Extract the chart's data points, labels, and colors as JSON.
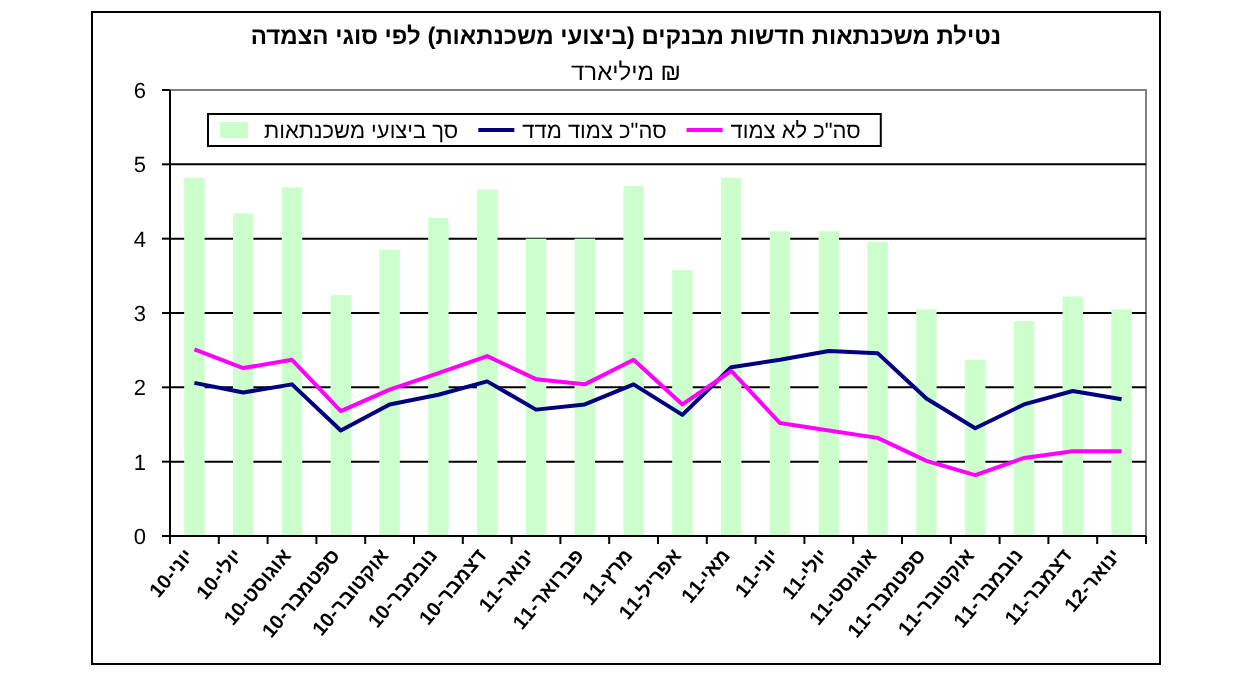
{
  "chart_data": {
    "type": "bar",
    "title": "נטילת משכנתאות חדשות מבנקים (ביצועי משכנתאות) לפי סוגי הצמדה",
    "subtitle": "מיליארד ₪",
    "categories": [
      "יוני-10",
      "יולי-10",
      "אוגוסט-10",
      "ספטמבר-10",
      "אוקטובר-10",
      "נובמבר-10",
      "דצמבר-10",
      "ינואר-11",
      "פברואר-11",
      "מרץ-11",
      "אפריל-11",
      "מאי-11",
      "יוני-11",
      "יולי-11",
      "אוגוסט-11",
      "ספטמבר-11",
      "אוקטובר-11",
      "נובמבר-11",
      "דצמבר-11",
      "ינואר-12"
    ],
    "series": [
      {
        "name": "סך ביצועי משכנתאות",
        "color": "#ccffcc",
        "values": [
          4.82,
          4.34,
          4.69,
          3.24,
          3.85,
          4.28,
          4.66,
          4.0,
          4.0,
          4.71,
          3.58,
          4.82,
          4.1,
          4.1,
          3.96,
          3.05,
          2.37,
          2.89,
          3.22,
          3.05
        ]
      },
      {
        "name": "סה\"כ צמוד מדד",
        "type": "line",
        "color": "#000080",
        "values": [
          2.06,
          1.93,
          2.04,
          1.42,
          1.77,
          1.9,
          2.08,
          1.7,
          1.77,
          2.04,
          1.63,
          2.27,
          2.37,
          2.49,
          2.46,
          1.85,
          1.45,
          1.77,
          1.95,
          1.84
        ]
      },
      {
        "name": "סה\"כ לא צמוד",
        "type": "line",
        "color": "#ff00ff",
        "values": [
          2.51,
          2.26,
          2.37,
          1.68,
          1.97,
          2.19,
          2.42,
          2.11,
          2.04,
          2.37,
          1.77,
          2.22,
          1.52,
          1.42,
          1.32,
          1.01,
          0.82,
          1.05,
          1.14,
          1.14
        ]
      }
    ],
    "ylim": [
      0,
      6
    ],
    "yticks": [
      0,
      1,
      2,
      3,
      4,
      5,
      6
    ],
    "grid": "y",
    "legend": "top left",
    "marker": "none",
    "line_style": "solid"
  }
}
